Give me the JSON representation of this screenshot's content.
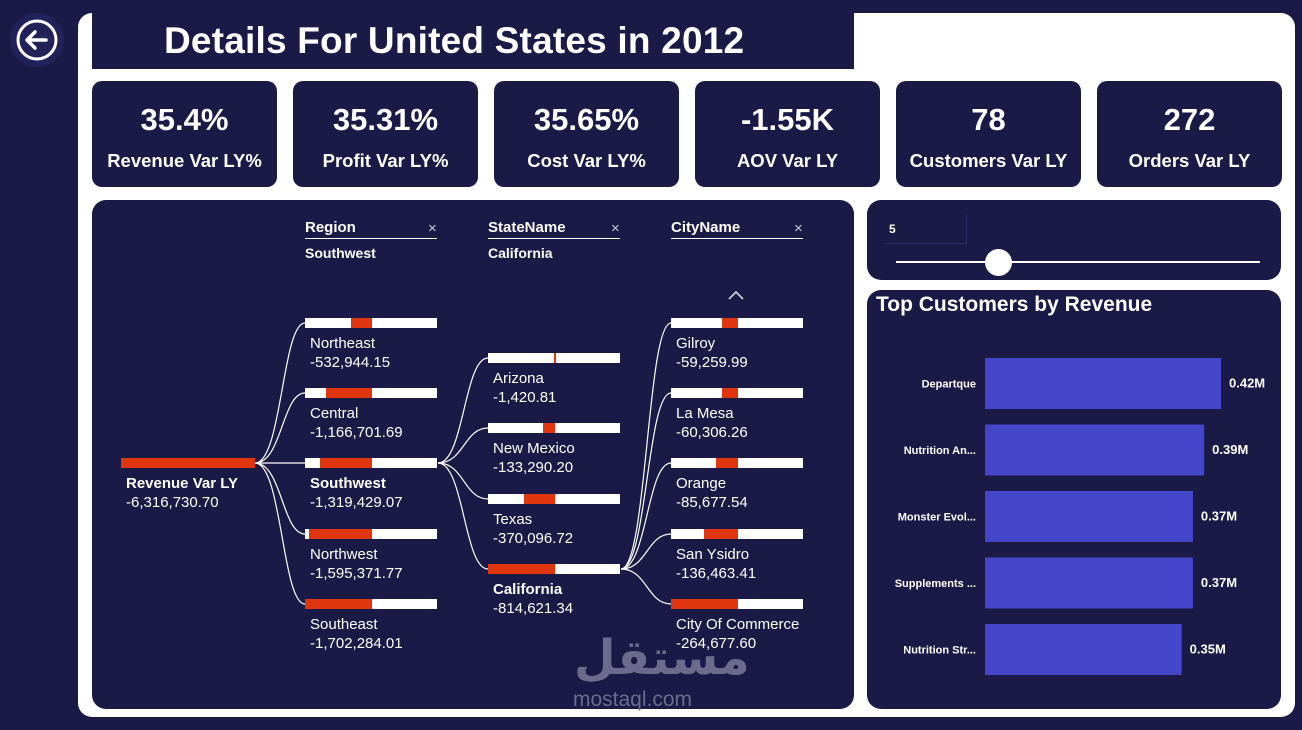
{
  "title": "Details For United States in 2012",
  "kpis": [
    {
      "value": "35.4%",
      "label": "Revenue Var LY%"
    },
    {
      "value": "35.31%",
      "label": "Profit Var LY%"
    },
    {
      "value": "35.65%",
      "label": "Cost Var LY%"
    },
    {
      "value": "-1.55K",
      "label": "AOV Var LY"
    },
    {
      "value": "78",
      "label": "Customers Var LY"
    },
    {
      "value": "272",
      "label": "Orders Var LY"
    }
  ],
  "tree": {
    "root": {
      "label": "Revenue Var LY",
      "value": "-6,316,730.70"
    },
    "levels": [
      {
        "field": "Region",
        "selected": "Southwest",
        "close_icon": "×"
      },
      {
        "field": "StateName",
        "selected": "California",
        "close_icon": "×"
      },
      {
        "field": "CityName",
        "selected": "",
        "close_icon": "×"
      }
    ],
    "regions": [
      {
        "label": "Northeast",
        "value": "-532,944.15",
        "fill_from": 0.35,
        "fill_to": 0.51
      },
      {
        "label": "Central",
        "value": "-1,166,701.69",
        "fill_from": 0.16,
        "fill_to": 0.51
      },
      {
        "label": "Southwest",
        "value": "-1,319,429.07",
        "fill_from": 0.11,
        "fill_to": 0.51
      },
      {
        "label": "Northwest",
        "value": "-1,595,371.77",
        "fill_from": 0.03,
        "fill_to": 0.51
      },
      {
        "label": "Southeast",
        "value": "-1,702,284.01",
        "fill_from": 0.0,
        "fill_to": 0.51
      }
    ],
    "states": [
      {
        "label": "Arizona",
        "value": "-1,420.81",
        "fill_from": 0.5,
        "fill_to": 0.51
      },
      {
        "label": "New Mexico",
        "value": "-133,290.20",
        "fill_from": 0.42,
        "fill_to": 0.51
      },
      {
        "label": "Texas",
        "value": "-370,096.72",
        "fill_from": 0.27,
        "fill_to": 0.51
      },
      {
        "label": "California",
        "value": "-814,621.34",
        "fill_from": 0.0,
        "fill_to": 0.51
      }
    ],
    "cities": [
      {
        "label": "Gilroy",
        "value": "-59,259.99",
        "fill_from": 0.39,
        "fill_to": 0.51
      },
      {
        "label": "La Mesa",
        "value": "-60,306.26",
        "fill_from": 0.39,
        "fill_to": 0.51
      },
      {
        "label": "Orange",
        "value": "-85,677.54",
        "fill_from": 0.34,
        "fill_to": 0.51
      },
      {
        "label": "San Ysidro",
        "value": "-136,463.41",
        "fill_from": 0.25,
        "fill_to": 0.51
      },
      {
        "label": "City Of Commerce",
        "value": "-264,677.60",
        "fill_from": 0.0,
        "fill_to": 0.51
      }
    ],
    "scroll_up_icon": "chevron-up"
  },
  "slider": {
    "value": "5",
    "position": 0.28
  },
  "chart_data": {
    "type": "bar",
    "orientation": "horizontal",
    "title": "Top Customers by Revenue",
    "categories": [
      "Departque",
      "Nutrition An...",
      "Monster Evol...",
      "Supplements ...",
      "Nutrition Str..."
    ],
    "values": [
      0.42,
      0.39,
      0.37,
      0.37,
      0.35
    ],
    "data_labels": [
      "0.42M",
      "0.39M",
      "0.37M",
      "0.37M",
      "0.35M"
    ],
    "bar_color": "#4547cb",
    "xlim": [
      0,
      0.42
    ]
  },
  "watermark": {
    "arabic": "مستقل",
    "latin": "mostaql.com"
  },
  "colors": {
    "background": "#1b1a46",
    "accent": "#e0360f",
    "bar": "#4547cb"
  }
}
